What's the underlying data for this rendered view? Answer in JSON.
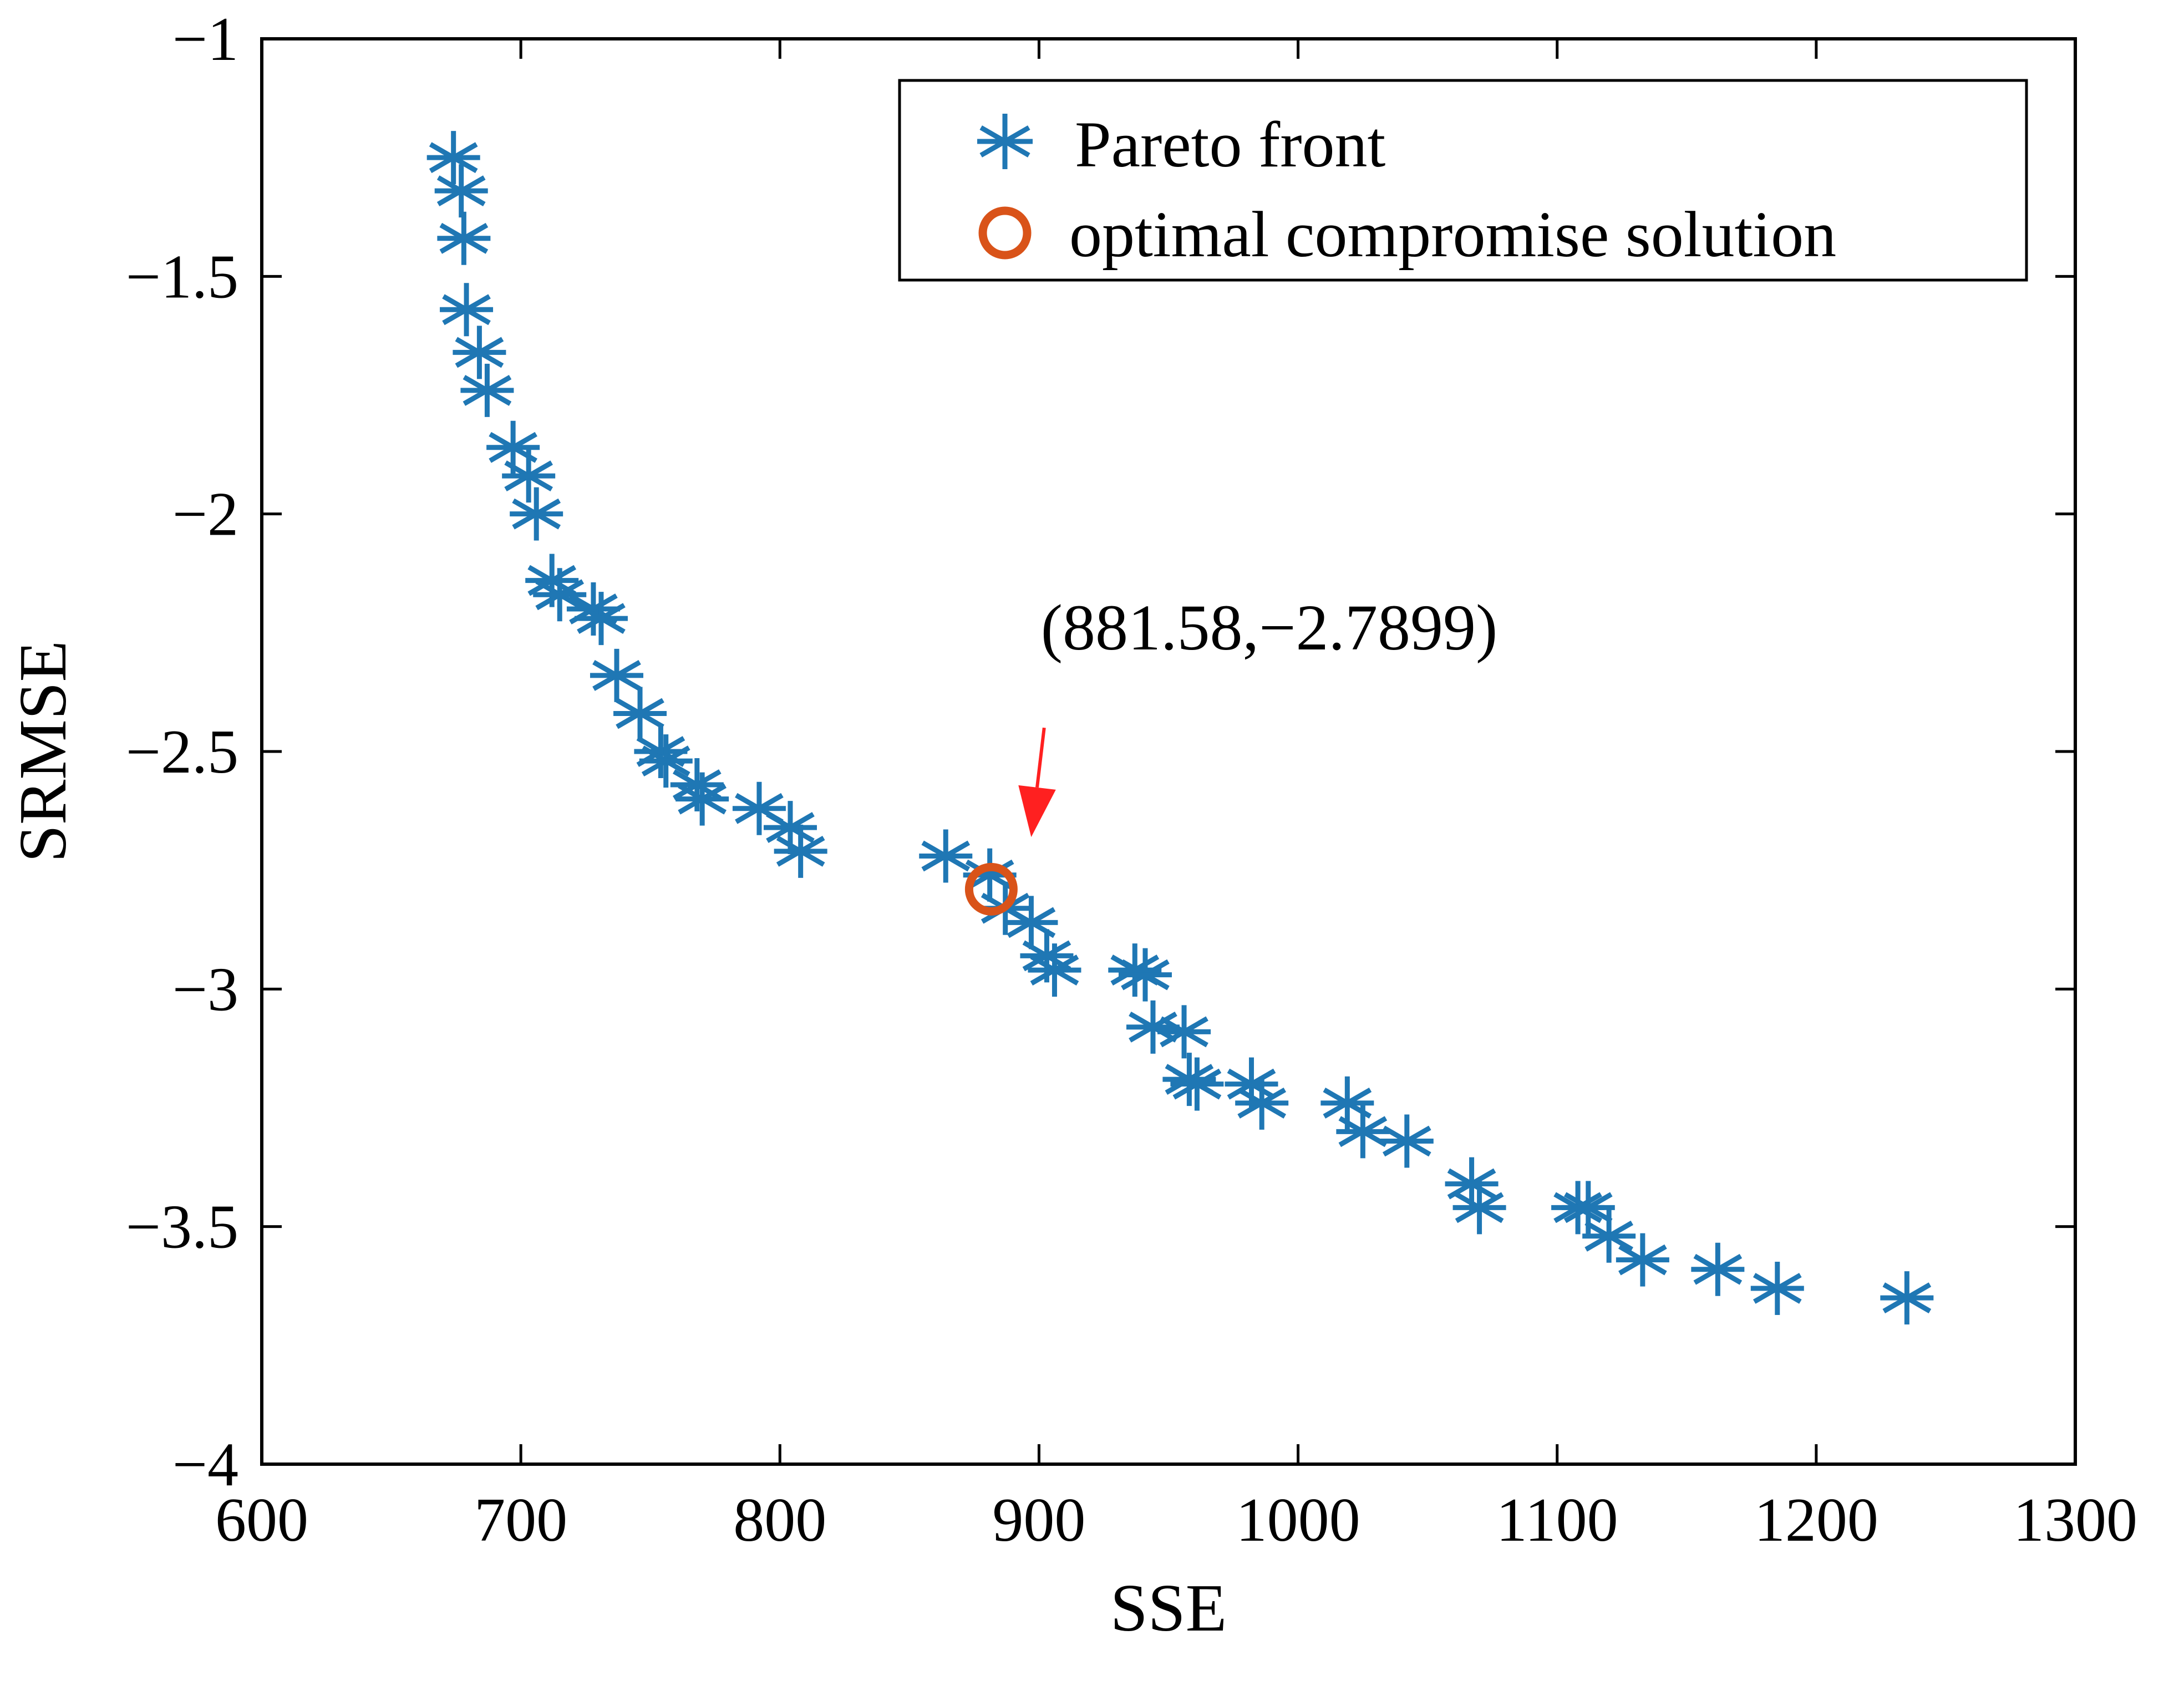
{
  "chart_data": {
    "type": "scatter",
    "xlabel": "SSE",
    "ylabel": "SRMSE",
    "xlim": [
      600,
      1300
    ],
    "ylim": [
      -4,
      -1
    ],
    "xticks": [
      600,
      700,
      800,
      900,
      1000,
      1100,
      1200,
      1300
    ],
    "yticks": [
      -1,
      -1.5,
      -2,
      -2.5,
      -3,
      -3.5,
      -4
    ],
    "xtick_labels": [
      "600",
      "700",
      "800",
      "900",
      "1000",
      "1100",
      "1200",
      "1300"
    ],
    "ytick_labels": [
      "−1",
      "−1.5",
      "−2",
      "−2.5",
      "−3",
      "−3.5",
      "−4"
    ],
    "grid": false,
    "legend_position": "top-right",
    "colors": {
      "pareto": "#1f77b4",
      "optimal": "#d95319",
      "arrow": "#ff2020"
    },
    "series": [
      {
        "name": "Pareto front",
        "marker": "asterisk",
        "points": [
          [
            674,
            -1.25
          ],
          [
            677,
            -1.32
          ],
          [
            678,
            -1.42
          ],
          [
            679,
            -1.57
          ],
          [
            684,
            -1.66
          ],
          [
            687,
            -1.74
          ],
          [
            697,
            -1.86
          ],
          [
            703,
            -1.92
          ],
          [
            706,
            -2.0
          ],
          [
            712,
            -2.14
          ],
          [
            715,
            -2.17
          ],
          [
            728,
            -2.2
          ],
          [
            731,
            -2.22
          ],
          [
            737,
            -2.34
          ],
          [
            746,
            -2.42
          ],
          [
            754,
            -2.5
          ],
          [
            756,
            -2.52
          ],
          [
            768,
            -2.57
          ],
          [
            770,
            -2.6
          ],
          [
            792,
            -2.62
          ],
          [
            804,
            -2.66
          ],
          [
            808,
            -2.71
          ],
          [
            864,
            -2.72
          ],
          [
            881,
            -2.76
          ],
          [
            887,
            -2.83
          ],
          [
            897,
            -2.86
          ],
          [
            903,
            -2.93
          ],
          [
            906,
            -2.96
          ],
          [
            937,
            -2.96
          ],
          [
            941,
            -2.97
          ],
          [
            944,
            -3.08
          ],
          [
            956,
            -3.09
          ],
          [
            958,
            -3.19
          ],
          [
            961,
            -3.2
          ],
          [
            982,
            -3.2
          ],
          [
            986,
            -3.24
          ],
          [
            1019,
            -3.24
          ],
          [
            1025,
            -3.3
          ],
          [
            1042,
            -3.32
          ],
          [
            1067,
            -3.41
          ],
          [
            1070,
            -3.46
          ],
          [
            1108,
            -3.46
          ],
          [
            1112,
            -3.46
          ],
          [
            1120,
            -3.52
          ],
          [
            1133,
            -3.57
          ],
          [
            1162,
            -3.59
          ],
          [
            1185,
            -3.63
          ],
          [
            1235,
            -3.65
          ]
        ]
      },
      {
        "name": "optimal compromise solution",
        "marker": "circle",
        "points": [
          [
            881.58,
            -2.7899
          ]
        ]
      }
    ],
    "annotations": [
      {
        "text": "(881.58,−2.7899)",
        "target": [
          881.58,
          -2.7899
        ],
        "text_anchor": [
          890,
          -2.25
        ],
        "arrow_from": [
          902,
          -2.45
        ],
        "arrow_to": [
          897,
          -2.68
        ]
      }
    ]
  }
}
